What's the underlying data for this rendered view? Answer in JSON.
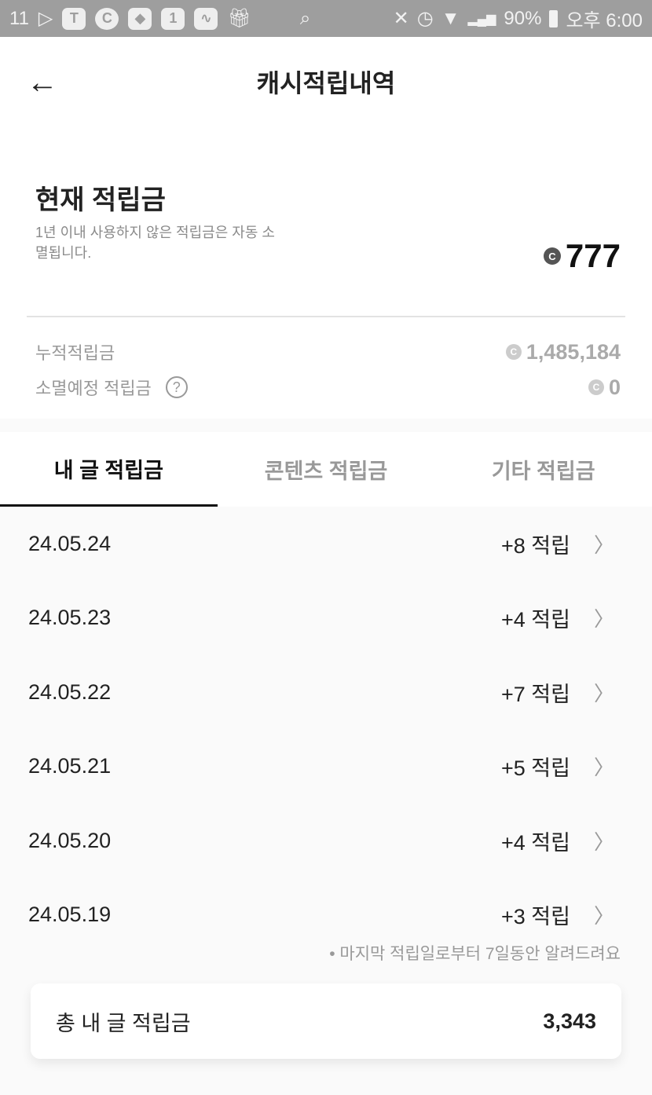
{
  "status_bar": {
    "left_text": "11",
    "icons": [
      "11st-icon",
      "tmap-icon",
      "c-icon",
      "shield-icon",
      "one-icon",
      "activity-icon",
      "gift-icon",
      "search-chart-icon"
    ],
    "right_icons": [
      "mute-icon",
      "alarm-icon",
      "wifi-icon",
      "signal-icon"
    ],
    "battery": "90%",
    "time": "오후 6:00"
  },
  "header": {
    "title": "캐시적립내역",
    "back_icon": "arrow-left-icon"
  },
  "summary": {
    "title": "현재 적립금",
    "description": "1년 이내 사용하지 않은 적립금은 자동 소멸됩니다.",
    "balance": "777",
    "coin_symbol": "C",
    "cumulative_label": "누적적립금",
    "cumulative_value": "1,485,184",
    "expiring_label": "소멸예정 적립금",
    "expiring_value": "0",
    "help_icon": "question-circle-icon"
  },
  "tabs": [
    {
      "label": "내 글 적립금",
      "active": true
    },
    {
      "label": "콘텐츠 적립금",
      "active": false
    },
    {
      "label": "기타 적립금",
      "active": false
    }
  ],
  "entries": [
    {
      "date": "24.05.24",
      "amount": "+8 적립"
    },
    {
      "date": "24.05.23",
      "amount": "+4 적립"
    },
    {
      "date": "24.05.22",
      "amount": "+7 적립"
    },
    {
      "date": "24.05.21",
      "amount": "+5 적립"
    },
    {
      "date": "24.05.20",
      "amount": "+4 적립"
    },
    {
      "date": "24.05.19",
      "amount": "+3 적립"
    }
  ],
  "note": "• 마지막 적립일로부터 7일동안 알려드려요",
  "total": {
    "label": "총 내 글 적립금",
    "value": "3,343"
  }
}
